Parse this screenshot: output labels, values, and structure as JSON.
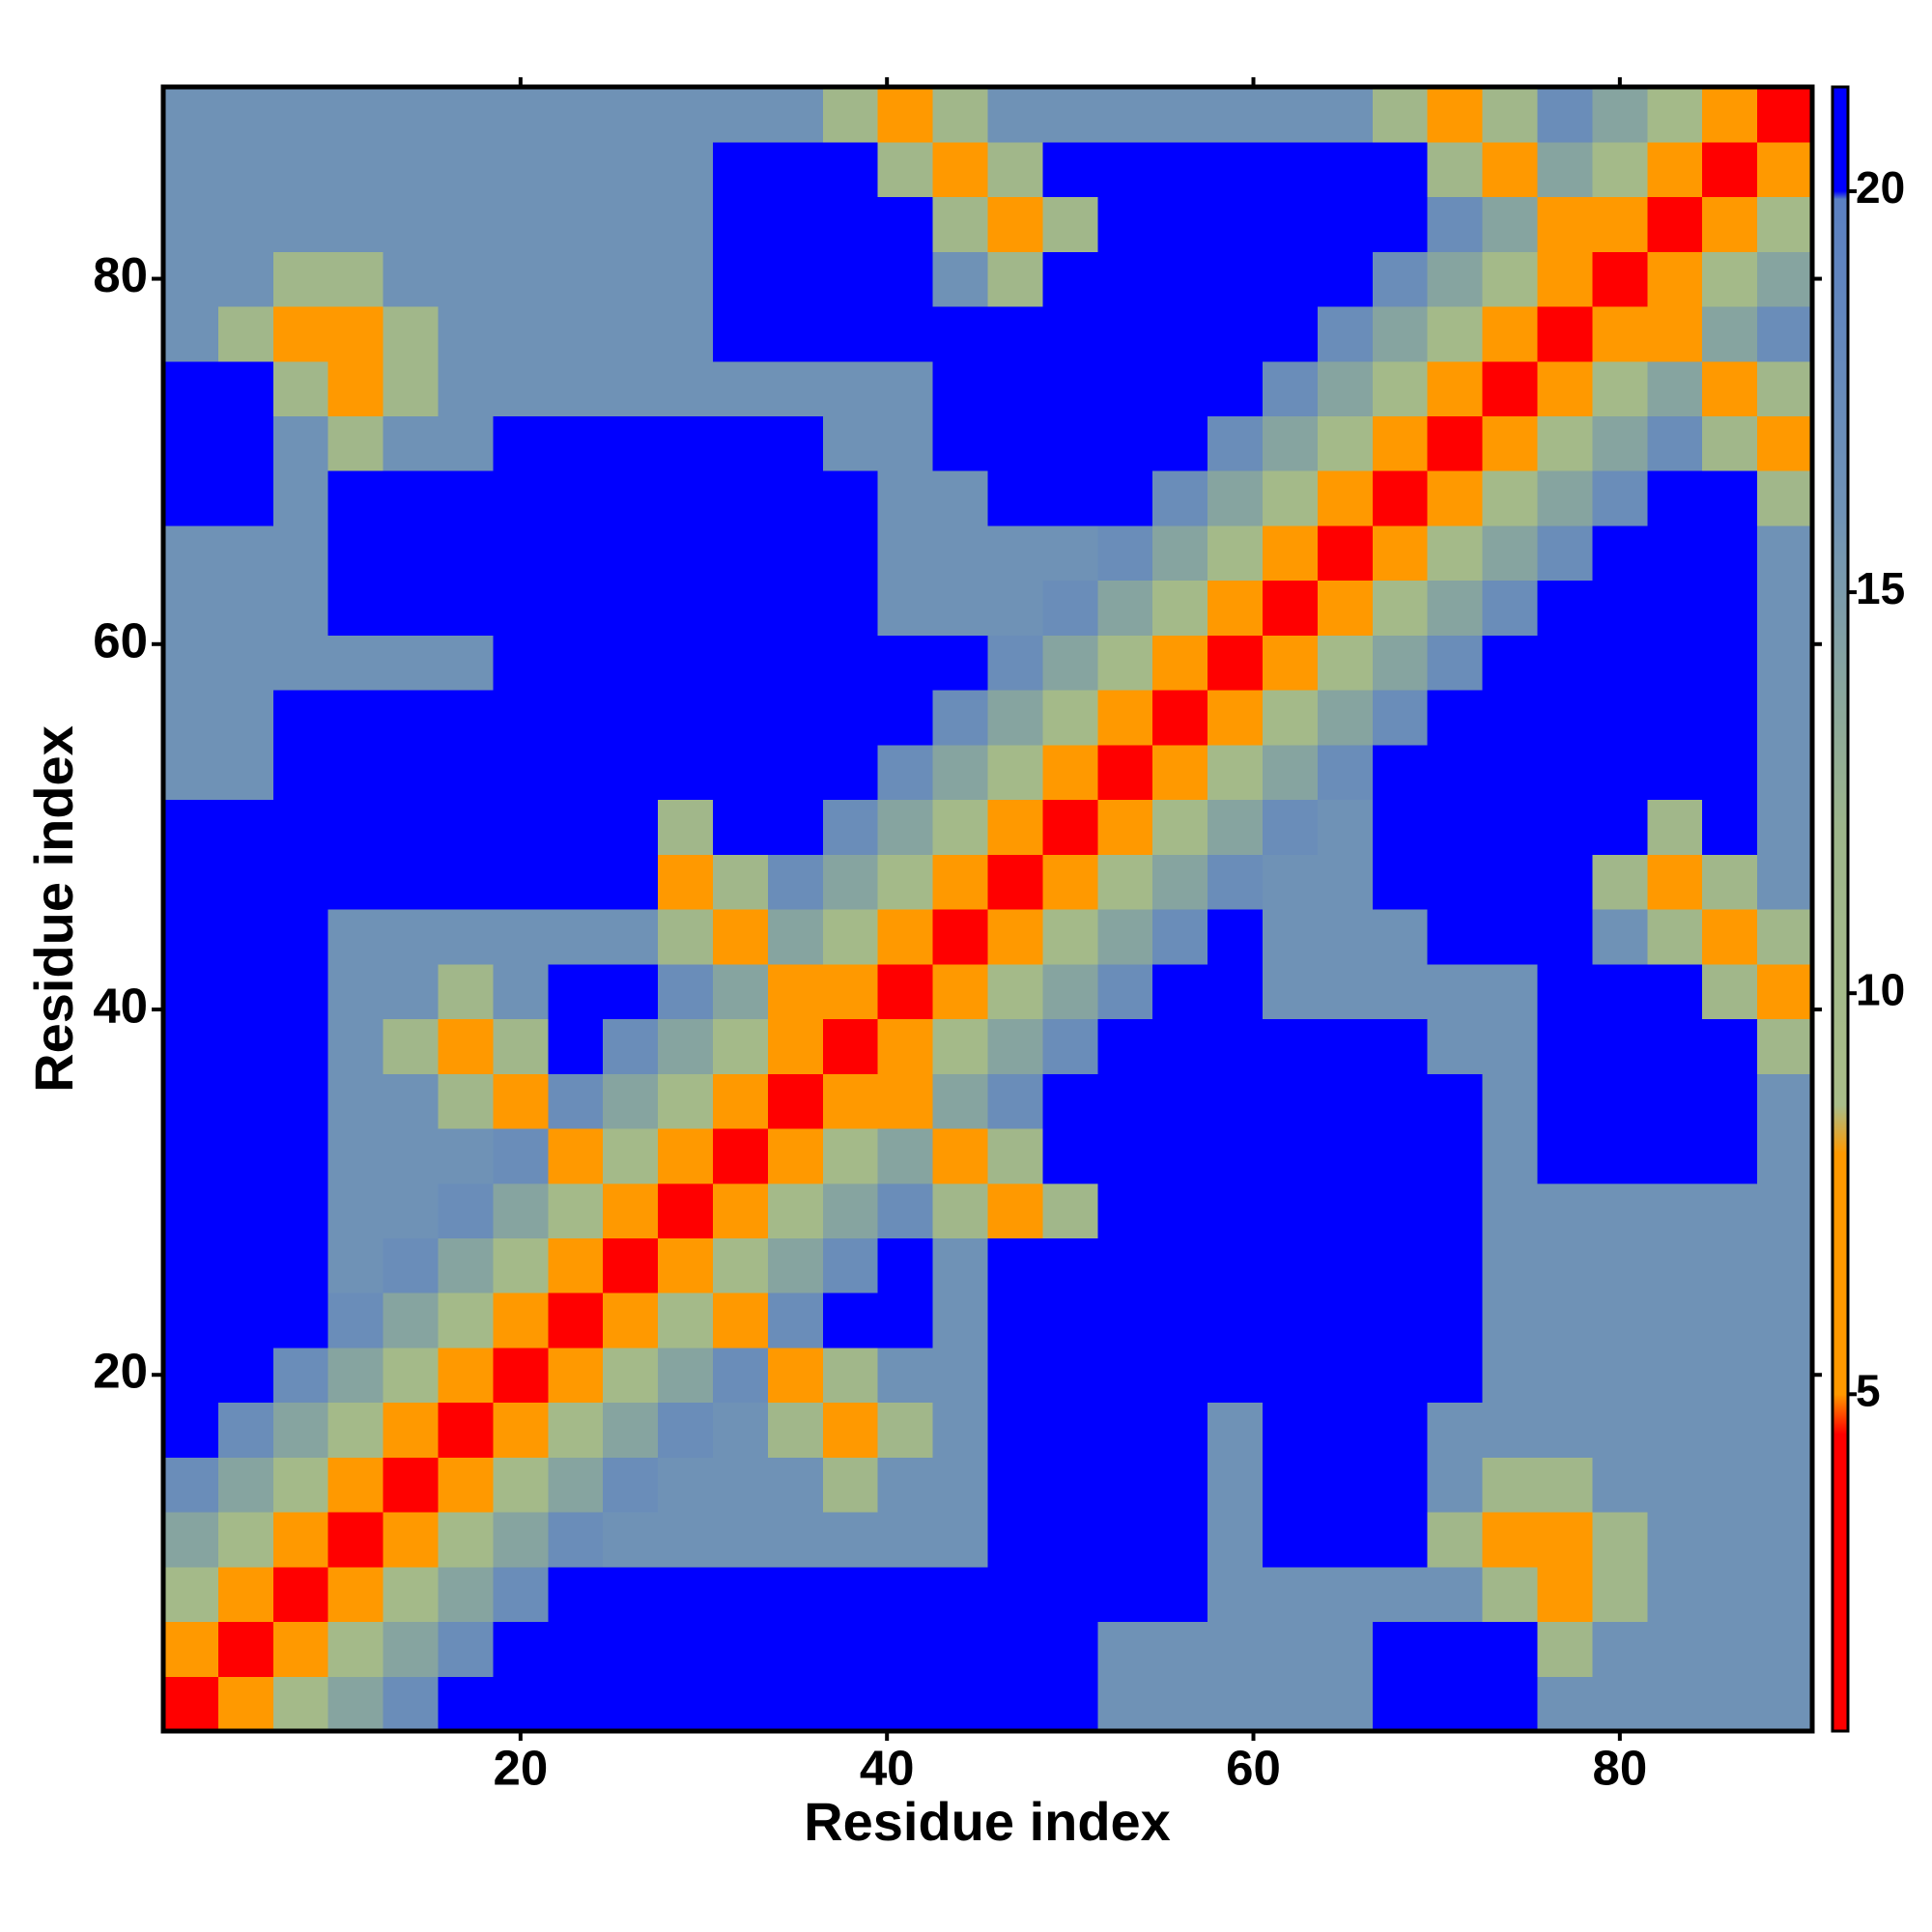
{
  "chart_data": {
    "type": "heatmap",
    "xlabel": "Residue index",
    "ylabel": "Residue index",
    "xlim": [
      0.5,
      90.5
    ],
    "ylim": [
      0.5,
      90.5
    ],
    "xticks": [
      20,
      40,
      60,
      80
    ],
    "yticks": [
      20,
      40,
      60,
      80
    ],
    "xbins": [
      0.5,
      3.5,
      6.5,
      9.5,
      12.5,
      15.5,
      18.5,
      21.5,
      24.5,
      27.5,
      30.5,
      33.5,
      36.5,
      39.5,
      42.5,
      45.5,
      48.5,
      51.5,
      54.5,
      57.5,
      60.5,
      63.5,
      66.5,
      69.5,
      72.5,
      75.5,
      78.5,
      81.5,
      84.5,
      87.5,
      90.5
    ],
    "ybins": [
      0.5,
      3.5,
      6.5,
      9.5,
      12.5,
      15.5,
      18.5,
      21.5,
      24.5,
      27.5,
      30.5,
      33.5,
      36.5,
      39.5,
      42.5,
      45.5,
      48.5,
      51.5,
      54.5,
      57.5,
      60.5,
      63.5,
      66.5,
      69.5,
      72.5,
      75.5,
      78.5,
      81.5,
      84.5,
      87.5,
      90.5
    ],
    "colorscale": [
      [
        0.8,
        "#ff0000"
      ],
      [
        4.5,
        "#ff0000"
      ],
      [
        5,
        "#ff9900"
      ],
      [
        8,
        "#ff9900"
      ],
      [
        8.6,
        "#a9bd89"
      ],
      [
        12,
        "#9db58a"
      ],
      [
        16,
        "#6f92b6"
      ],
      [
        19.9,
        "#5b80c2"
      ],
      [
        20,
        "#0000ff"
      ],
      [
        21.3,
        "#0000ff"
      ]
    ],
    "colorbar": {
      "lim": [
        0.8,
        21.3
      ],
      "ticks": [
        5,
        10,
        15,
        20
      ]
    },
    "z": [
      [
        3,
        6,
        10,
        14,
        17,
        21,
        21,
        21,
        21,
        21,
        21,
        21,
        21,
        21,
        21,
        21,
        21,
        16,
        16,
        16,
        16,
        16,
        21,
        21,
        21,
        16,
        16,
        16,
        16,
        16
      ],
      [
        6,
        3,
        6,
        10,
        14,
        17,
        21,
        21,
        21,
        21,
        21,
        21,
        21,
        21,
        21,
        21,
        21,
        16,
        16,
        16,
        16,
        16,
        21,
        21,
        21,
        11,
        16,
        16,
        16,
        16
      ],
      [
        10,
        6,
        3,
        6,
        10,
        14,
        17,
        21,
        21,
        21,
        21,
        21,
        21,
        21,
        21,
        21,
        21,
        21,
        21,
        16,
        16,
        16,
        16,
        16,
        11,
        8,
        11,
        16,
        16,
        16
      ],
      [
        14,
        10,
        6,
        3,
        6,
        10,
        14,
        17,
        16,
        16,
        16,
        16,
        16,
        16,
        16,
        21,
        21,
        21,
        21,
        16,
        21,
        21,
        21,
        11,
        8,
        6,
        11,
        16,
        16,
        16
      ],
      [
        17,
        14,
        10,
        6,
        3,
        6,
        10,
        14,
        17,
        16,
        16,
        16,
        11,
        16,
        16,
        21,
        21,
        21,
        21,
        16,
        21,
        21,
        21,
        16,
        11,
        11,
        16,
        16,
        16,
        16
      ],
      [
        21,
        17,
        14,
        10,
        6,
        3,
        6,
        10,
        14,
        17,
        16,
        11,
        6,
        11,
        16,
        21,
        21,
        21,
        21,
        16,
        21,
        21,
        21,
        16,
        16,
        16,
        16,
        16,
        16,
        16
      ],
      [
        21,
        21,
        17,
        14,
        10,
        6,
        3,
        6,
        10,
        14,
        17,
        6,
        11,
        16,
        16,
        21,
        21,
        21,
        21,
        21,
        21,
        21,
        21,
        21,
        16,
        16,
        16,
        16,
        16,
        16
      ],
      [
        21,
        21,
        21,
        17,
        14,
        10,
        6,
        3,
        6,
        10,
        6,
        17,
        21,
        21,
        16,
        21,
        21,
        21,
        21,
        21,
        21,
        21,
        21,
        21,
        16,
        16,
        16,
        16,
        16,
        16
      ],
      [
        21,
        21,
        21,
        16,
        17,
        14,
        10,
        6,
        3,
        6,
        10,
        14,
        17,
        21,
        16,
        21,
        21,
        21,
        21,
        21,
        21,
        21,
        21,
        21,
        16,
        16,
        16,
        16,
        16,
        16
      ],
      [
        21,
        21,
        21,
        16,
        16,
        17,
        14,
        10,
        6,
        3,
        6,
        10,
        14,
        17,
        11,
        6,
        11,
        21,
        21,
        21,
        21,
        21,
        21,
        21,
        16,
        16,
        16,
        16,
        16,
        16
      ],
      [
        21,
        21,
        21,
        16,
        16,
        16,
        17,
        6,
        10,
        6,
        3,
        6,
        10,
        14,
        6,
        11,
        21,
        21,
        21,
        21,
        21,
        21,
        21,
        21,
        16,
        21,
        21,
        21,
        21,
        16
      ],
      [
        21,
        21,
        21,
        16,
        16,
        11,
        6,
        17,
        14,
        10,
        6,
        3,
        6,
        6,
        14,
        17,
        21,
        21,
        21,
        21,
        21,
        21,
        21,
        21,
        16,
        21,
        21,
        21,
        21,
        16
      ],
      [
        21,
        21,
        21,
        16,
        11,
        6,
        11,
        21,
        17,
        14,
        10,
        6,
        3,
        6,
        10,
        14,
        17,
        21,
        21,
        21,
        21,
        21,
        21,
        16,
        16,
        21,
        21,
        21,
        21,
        11
      ],
      [
        21,
        21,
        21,
        16,
        16,
        11,
        16,
        21,
        21,
        17,
        14,
        6,
        6,
        3,
        6,
        10,
        14,
        17,
        21,
        21,
        16,
        16,
        16,
        16,
        16,
        21,
        21,
        21,
        11,
        6
      ],
      [
        21,
        21,
        21,
        16,
        16,
        16,
        16,
        16,
        16,
        11,
        6,
        14,
        10,
        6,
        3,
        6,
        10,
        14,
        17,
        21,
        16,
        16,
        16,
        21,
        21,
        21,
        16,
        11,
        6,
        11
      ],
      [
        21,
        21,
        21,
        21,
        21,
        21,
        21,
        21,
        21,
        6,
        11,
        17,
        14,
        10,
        6,
        3,
        6,
        10,
        14,
        17,
        16,
        16,
        21,
        21,
        21,
        21,
        11,
        6,
        11,
        16
      ],
      [
        21,
        21,
        21,
        21,
        21,
        21,
        21,
        21,
        21,
        11,
        21,
        21,
        17,
        14,
        10,
        6,
        3,
        6,
        10,
        14,
        17,
        16,
        21,
        21,
        21,
        21,
        21,
        11,
        21,
        16
      ],
      [
        16,
        16,
        21,
        21,
        21,
        21,
        21,
        21,
        21,
        21,
        21,
        21,
        21,
        17,
        14,
        10,
        6,
        3,
        6,
        10,
        14,
        17,
        21,
        21,
        21,
        21,
        21,
        21,
        21,
        16
      ],
      [
        16,
        16,
        21,
        21,
        21,
        21,
        21,
        21,
        21,
        21,
        21,
        21,
        21,
        21,
        17,
        14,
        10,
        6,
        3,
        6,
        10,
        14,
        17,
        21,
        21,
        21,
        21,
        21,
        21,
        16
      ],
      [
        16,
        16,
        16,
        16,
        16,
        16,
        21,
        21,
        21,
        21,
        21,
        21,
        21,
        21,
        21,
        17,
        14,
        10,
        6,
        3,
        6,
        10,
        14,
        17,
        21,
        21,
        21,
        21,
        21,
        16
      ],
      [
        16,
        16,
        16,
        21,
        21,
        21,
        21,
        21,
        21,
        21,
        21,
        21,
        21,
        16,
        16,
        16,
        17,
        14,
        10,
        6,
        3,
        6,
        10,
        14,
        17,
        21,
        21,
        21,
        21,
        16
      ],
      [
        16,
        16,
        16,
        21,
        21,
        21,
        21,
        21,
        21,
        21,
        21,
        21,
        21,
        16,
        16,
        16,
        16,
        17,
        14,
        10,
        6,
        3,
        6,
        10,
        14,
        17,
        21,
        21,
        21,
        16
      ],
      [
        21,
        21,
        16,
        21,
        21,
        21,
        21,
        21,
        21,
        21,
        21,
        21,
        21,
        16,
        16,
        21,
        21,
        21,
        17,
        14,
        10,
        6,
        3,
        6,
        10,
        14,
        17,
        21,
        21,
        11
      ],
      [
        21,
        21,
        16,
        11,
        16,
        16,
        21,
        21,
        21,
        21,
        21,
        21,
        16,
        16,
        21,
        21,
        21,
        21,
        21,
        17,
        14,
        10,
        6,
        3,
        6,
        10,
        14,
        17,
        11,
        6
      ],
      [
        21,
        21,
        11,
        8,
        11,
        16,
        16,
        16,
        16,
        16,
        16,
        16,
        16,
        16,
        21,
        21,
        21,
        21,
        21,
        21,
        17,
        14,
        10,
        6,
        3,
        6,
        10,
        14,
        6,
        11
      ],
      [
        16,
        11,
        8,
        6,
        11,
        16,
        16,
        16,
        16,
        16,
        21,
        21,
        21,
        21,
        21,
        21,
        21,
        21,
        21,
        21,
        21,
        17,
        14,
        10,
        6,
        3,
        6,
        6,
        14,
        17
      ],
      [
        16,
        16,
        11,
        11,
        16,
        16,
        16,
        16,
        16,
        16,
        21,
        21,
        21,
        21,
        16,
        11,
        21,
        21,
        21,
        21,
        21,
        21,
        17,
        14,
        10,
        6,
        3,
        6,
        10,
        14
      ],
      [
        16,
        16,
        16,
        16,
        16,
        16,
        16,
        16,
        16,
        16,
        21,
        21,
        21,
        21,
        11,
        6,
        11,
        21,
        21,
        21,
        21,
        21,
        21,
        17,
        14,
        6,
        6,
        3,
        6,
        10
      ],
      [
        16,
        16,
        16,
        16,
        16,
        16,
        16,
        16,
        16,
        16,
        21,
        21,
        21,
        11,
        6,
        11,
        21,
        21,
        21,
        21,
        21,
        21,
        21,
        11,
        6,
        14,
        10,
        6,
        3,
        6
      ],
      [
        16,
        16,
        16,
        16,
        16,
        16,
        16,
        16,
        16,
        16,
        16,
        16,
        11,
        6,
        11,
        16,
        16,
        16,
        16,
        16,
        16,
        16,
        11,
        6,
        11,
        17,
        14,
        10,
        6,
        3
      ]
    ]
  }
}
